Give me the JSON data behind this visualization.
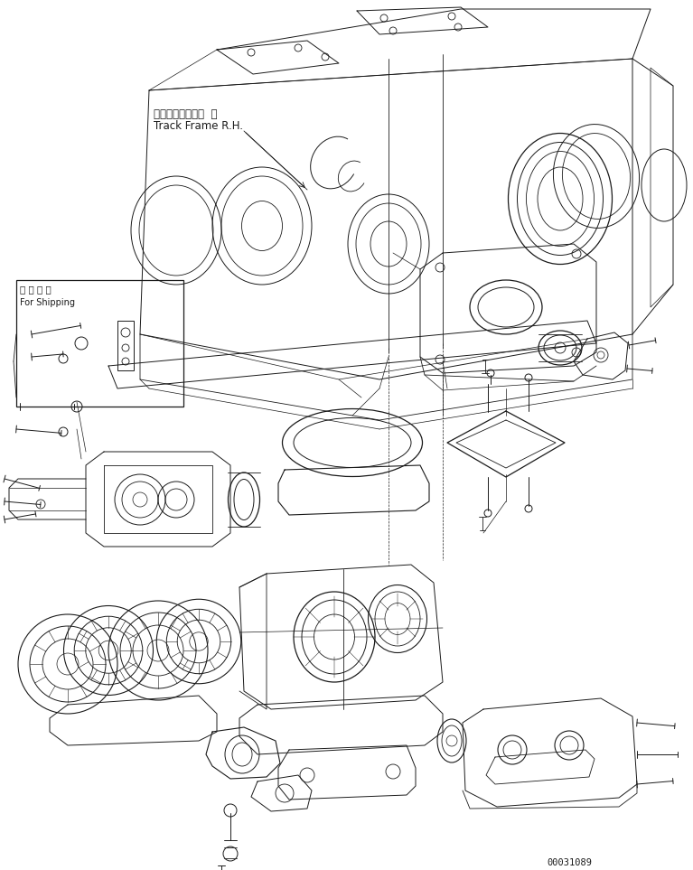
{
  "background_color": "#ffffff",
  "line_color": "#1a1a1a",
  "part_number": "00031089",
  "label_track_frame_jp": "トラックフレーム  右",
  "label_track_frame_en": "Track Frame R.H.",
  "label_shipping_jp": "運 搜 部 品",
  "label_shipping_en": "For Shipping",
  "fig_width": 7.67,
  "fig_height": 9.63,
  "dpi": 100
}
